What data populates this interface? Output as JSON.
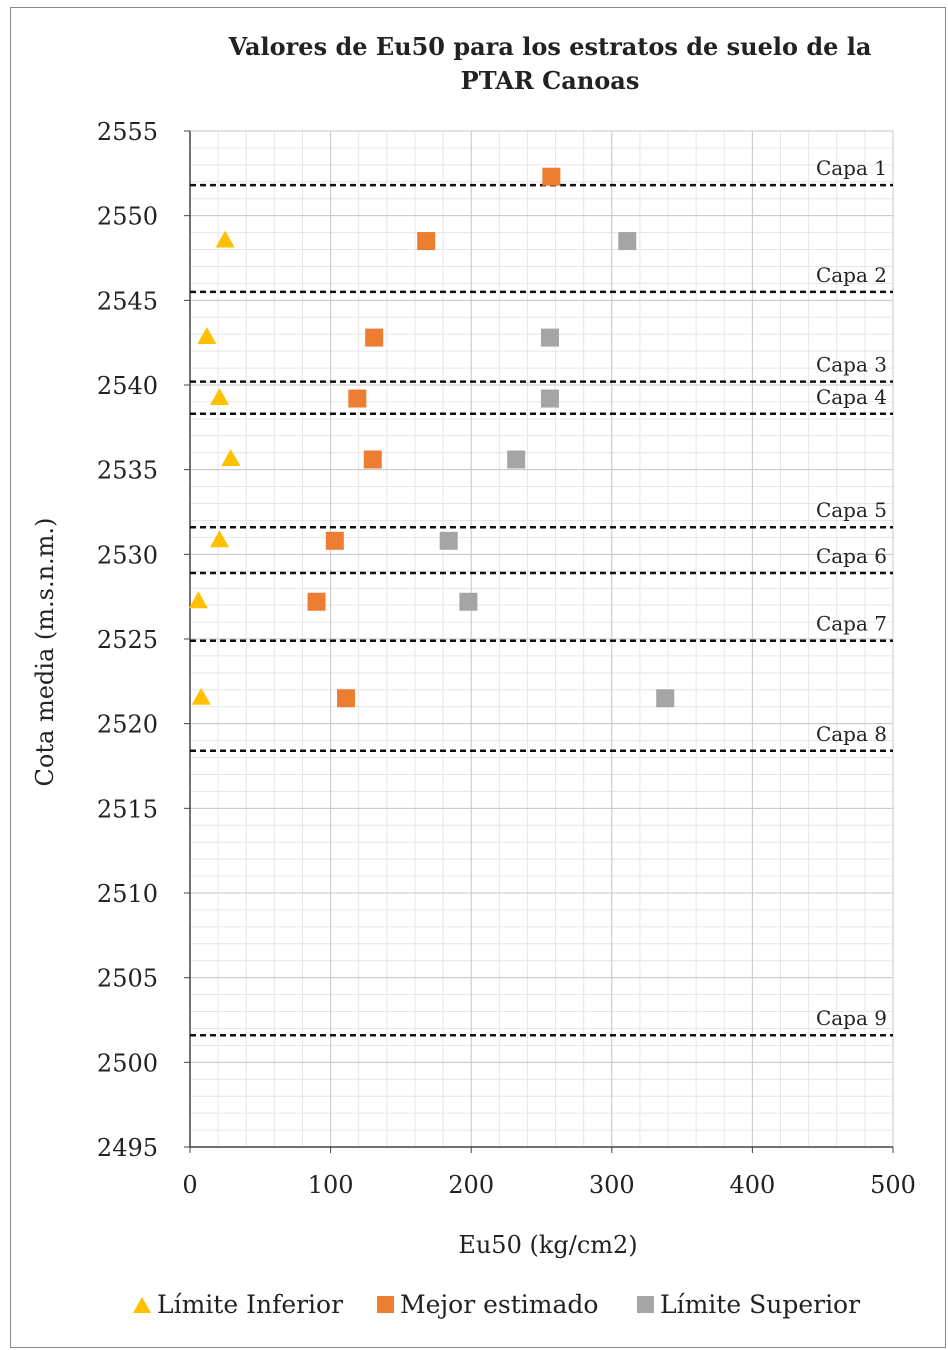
{
  "chart_data": {
    "type": "scatter",
    "title": "Valores de Eu50 para los estratos de suelo de la PTAR Canoas",
    "title_lines": [
      "Valores de Eu50 para los estratos de suelo de la",
      "PTAR Canoas"
    ],
    "xlabel": "Eu50 (kg/cm2)",
    "ylabel": "Cota media (m.s.n.m.)",
    "xlim": [
      0,
      500
    ],
    "ylim": [
      2495,
      2555
    ],
    "x_ticks": [
      0,
      100,
      200,
      300,
      400,
      500
    ],
    "y_ticks": [
      2495,
      2500,
      2505,
      2510,
      2515,
      2520,
      2525,
      2530,
      2535,
      2540,
      2545,
      2550,
      2555
    ],
    "grid": true,
    "legend_position": "bottom",
    "series": [
      {
        "name": "Límite Inferior",
        "marker": "triangle",
        "color": "#FFC000",
        "points": [
          [
            25,
            2548.5
          ],
          [
            12,
            2542.8
          ],
          [
            21,
            2539.2
          ],
          [
            29,
            2535.6
          ],
          [
            21,
            2530.8
          ],
          [
            6,
            2527.2
          ],
          [
            8,
            2521.5
          ]
        ]
      },
      {
        "name": "Mejor estimado",
        "marker": "square",
        "color": "#ED7D31",
        "points": [
          [
            257,
            2552.3
          ],
          [
            168,
            2548.5
          ],
          [
            131,
            2542.8
          ],
          [
            119,
            2539.2
          ],
          [
            130,
            2535.6
          ],
          [
            103,
            2530.8
          ],
          [
            90,
            2527.2
          ],
          [
            111,
            2521.5
          ]
        ]
      },
      {
        "name": "Límite Superior",
        "marker": "square",
        "color": "#A5A5A5",
        "points": [
          [
            311,
            2548.5
          ],
          [
            256,
            2542.8
          ],
          [
            256,
            2539.2
          ],
          [
            232,
            2535.6
          ],
          [
            184,
            2530.8
          ],
          [
            198,
            2527.2
          ],
          [
            338,
            2521.5
          ]
        ]
      }
    ],
    "layers": [
      {
        "label": "Capa 1",
        "y": 2551.8
      },
      {
        "label": "Capa 2",
        "y": 2545.5
      },
      {
        "label": "Capa 3",
        "y": 2540.2
      },
      {
        "label": "Capa 4",
        "y": 2538.3
      },
      {
        "label": "Capa 5",
        "y": 2531.6
      },
      {
        "label": "Capa 6",
        "y": 2528.9
      },
      {
        "label": "Capa 7",
        "y": 2524.9
      },
      {
        "label": "Capa 8",
        "y": 2518.4
      },
      {
        "label": "Capa 9",
        "y": 2501.6
      }
    ]
  }
}
